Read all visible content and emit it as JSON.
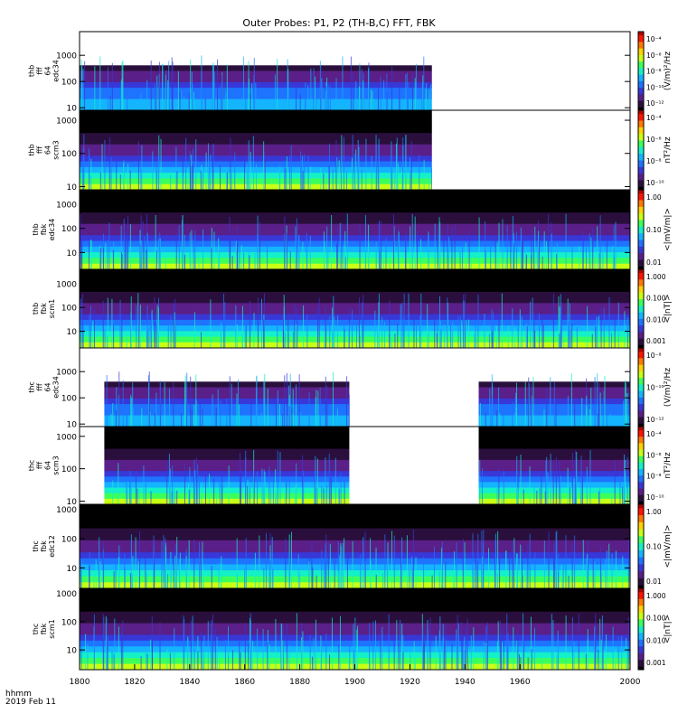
{
  "title": "Outer Probes: P1, P2 (TH-B,C) FFT, FBK",
  "x_axis": {
    "ticks": [
      "1800",
      "1820",
      "1840",
      "1860",
      "1880",
      "1900",
      "1920",
      "1940",
      "1960",
      "2000"
    ],
    "tick_values": [
      1800,
      1820,
      1840,
      1860,
      1880,
      1900,
      1920,
      1940,
      1960,
      2000
    ],
    "range": [
      1800,
      2000
    ],
    "label_line1": "hhmm",
    "label_line2": "2019 Feb 11"
  },
  "colors": {
    "background": "#ffffff",
    "colormap": [
      "#000000",
      "#2a0f3c",
      "#5a1f88",
      "#3838d8",
      "#1e73ff",
      "#14b4ff",
      "#14f0c8",
      "#3cff5a",
      "#c8ff14",
      "#ffd200",
      "#ff7800",
      "#ff1400",
      "#b40000"
    ]
  },
  "chart_data": [
    {
      "type": "heatmap",
      "panel_label": [
        "thb",
        "fff",
        "64",
        "edc34"
      ],
      "y_ticks": [
        "1000",
        "100",
        "10"
      ],
      "y_tick_values": [
        1000,
        100,
        10
      ],
      "ylim": [
        8,
        8000
      ],
      "ylog": true,
      "colorbar_label": "(V/m)²/Hz",
      "colorbar_ticks": [
        "10⁻⁴",
        "10⁻⁶",
        "10⁻⁸",
        "10⁻¹⁰",
        "10⁻¹²"
      ],
      "data_extent": [
        1800,
        1928
      ],
      "description": "sparse data"
    },
    {
      "type": "heatmap",
      "panel_label": [
        "thb",
        "fff",
        "64",
        "scm3"
      ],
      "y_ticks": [
        "1000",
        "100",
        "10"
      ],
      "y_tick_values": [
        1000,
        100,
        10
      ],
      "ylim": [
        8,
        2000
      ],
      "ylog": true,
      "colorbar_label": "nT²/Hz",
      "colorbar_ticks": [
        "10⁻⁴",
        "10⁻⁶",
        "10⁻⁸",
        "10⁻¹⁰"
      ],
      "data_extent": [
        1800,
        1928
      ],
      "description": ""
    },
    {
      "type": "heatmap",
      "panel_label": [
        "thb",
        "fbk",
        "edc34"
      ],
      "y_ticks": [
        "1000",
        "100",
        "10"
      ],
      "y_tick_values": [
        1000,
        100,
        10
      ],
      "ylim": [
        2,
        4000
      ],
      "ylog": true,
      "colorbar_label": "<|mV/m|>",
      "colorbar_ticks": [
        "1.00",
        "0.10",
        "0.01"
      ],
      "data_extent": [
        1800,
        2000
      ],
      "description": ""
    },
    {
      "type": "heatmap",
      "panel_label": [
        "thb",
        "fbk",
        "scm1"
      ],
      "y_ticks": [
        "1000",
        "100",
        "10"
      ],
      "y_tick_values": [
        1000,
        100,
        10
      ],
      "ylim": [
        2,
        4000
      ],
      "ylog": true,
      "colorbar_label": "<|nT|>",
      "colorbar_ticks": [
        "1.000",
        "0.100",
        "0.010",
        "0.001"
      ],
      "data_extent": [
        1800,
        2000
      ],
      "description": ""
    },
    {
      "type": "heatmap",
      "panel_label": [
        "thc",
        "fff",
        "64",
        "edc34"
      ],
      "y_ticks": [
        "1000",
        "100",
        "10"
      ],
      "y_tick_values": [
        1000,
        100,
        10
      ],
      "ylim": [
        8,
        8000
      ],
      "ylog": true,
      "colorbar_label": "(V/m)²/Hz",
      "colorbar_ticks": [
        "10⁻⁸",
        "10⁻¹⁰",
        "10⁻¹²"
      ],
      "data_extent": [
        1809,
        1898
      ],
      "data_extent2": [
        1945,
        2000
      ],
      "description": "sparse data"
    },
    {
      "type": "heatmap",
      "panel_label": [
        "thc",
        "fff",
        "64",
        "scm3"
      ],
      "y_ticks": [
        "1000",
        "100",
        "10"
      ],
      "y_tick_values": [
        1000,
        100,
        10
      ],
      "ylim": [
        8,
        2000
      ],
      "ylog": true,
      "colorbar_label": "nT²/Hz",
      "colorbar_ticks": [
        "10⁻⁴",
        "10⁻⁶",
        "10⁻⁸",
        "10⁻¹⁰"
      ],
      "data_extent": [
        1809,
        1898
      ],
      "data_extent2": [
        1945,
        2000
      ],
      "description": ""
    },
    {
      "type": "heatmap",
      "panel_label": [
        "thc",
        "fbk",
        "edc12"
      ],
      "y_ticks": [
        "1000",
        "100",
        "10"
      ],
      "y_tick_values": [
        1000,
        100,
        10
      ],
      "ylim": [
        2,
        1500
      ],
      "ylog": true,
      "colorbar_label": "<|mV/m|>",
      "colorbar_ticks": [
        "1.00",
        "0.10",
        "0.01"
      ],
      "data_extent": [
        1800,
        2000
      ],
      "description": ""
    },
    {
      "type": "heatmap",
      "panel_label": [
        "thc",
        "fbk",
        "scm1"
      ],
      "y_ticks": [
        "1000",
        "100",
        "10"
      ],
      "y_tick_values": [
        1000,
        100,
        10
      ],
      "ylim": [
        2,
        1500
      ],
      "ylog": true,
      "colorbar_label": "<|nT|>",
      "colorbar_ticks": [
        "1.000",
        "0.100",
        "0.010",
        "0.001"
      ],
      "data_extent": [
        1800,
        2000
      ],
      "description": ""
    }
  ]
}
